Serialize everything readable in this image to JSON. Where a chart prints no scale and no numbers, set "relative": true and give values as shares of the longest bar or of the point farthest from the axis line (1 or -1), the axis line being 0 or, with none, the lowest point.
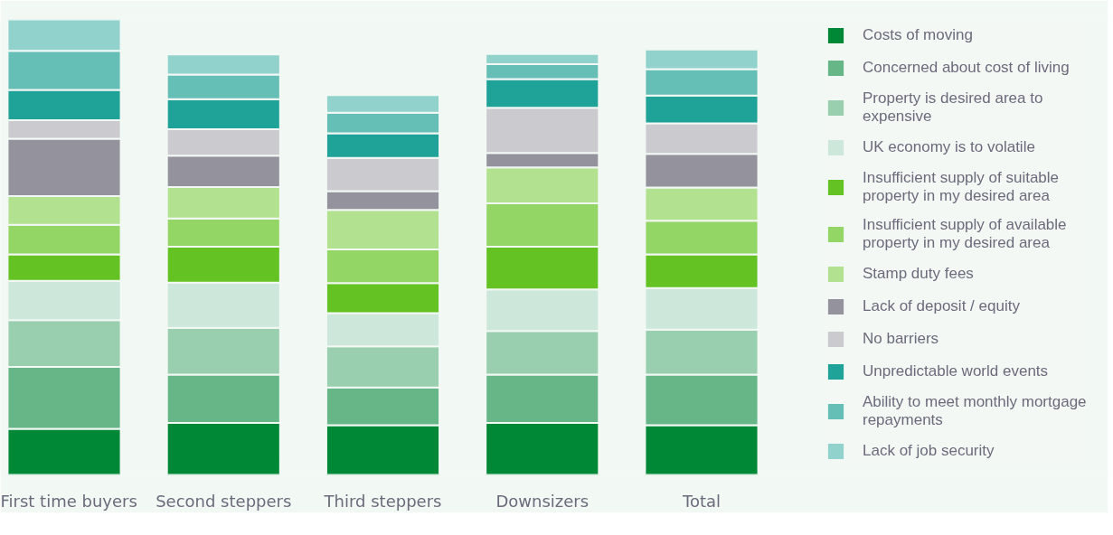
{
  "chart_data": {
    "type": "bar",
    "stacked": true,
    "relative": true,
    "legend": "right",
    "categories": [
      "First time buyers",
      "Second steppers",
      "Third steppers",
      "Downsizers",
      "Total"
    ],
    "series": [
      {
        "name": "Costs of moving",
        "color": "#008837",
        "values": [
          0.101,
          0.114,
          0.109,
          0.114,
          0.109
        ]
      },
      {
        "name": "Concerned about cost of living",
        "color": "#66b688",
        "values": [
          0.136,
          0.106,
          0.083,
          0.106,
          0.111
        ]
      },
      {
        "name": "Property is desired area to expensive",
        "color": "#99cfae",
        "values": [
          0.103,
          0.103,
          0.09,
          0.096,
          0.099
        ]
      },
      {
        "name": "UK economy is to volatile",
        "color": "#cde8da",
        "values": [
          0.086,
          0.099,
          0.073,
          0.091,
          0.091
        ]
      },
      {
        "name": "Insufficient supply of suitable property in my desired area",
        "color": "#64c223",
        "values": [
          0.058,
          0.079,
          0.066,
          0.094,
          0.074
        ]
      },
      {
        "name": "Insufficient supply of available property in my desired area",
        "color": "#93d666",
        "values": [
          0.065,
          0.062,
          0.074,
          0.095,
          0.074
        ]
      },
      {
        "name": "Stamp duty fees",
        "color": "#b2e290",
        "values": [
          0.063,
          0.069,
          0.087,
          0.079,
          0.073
        ]
      },
      {
        "name": "Lack of deposit / equity",
        "color": "#94929c",
        "values": [
          0.126,
          0.069,
          0.041,
          0.032,
          0.074
        ]
      },
      {
        "name": "No barriers",
        "color": "#cbcacf",
        "values": [
          0.041,
          0.058,
          0.073,
          0.099,
          0.067
        ]
      },
      {
        "name": "Unpredictable world events",
        "color": "#1fa398",
        "values": [
          0.066,
          0.066,
          0.054,
          0.063,
          0.061
        ]
      },
      {
        "name": "Ability to meet monthly mortgage repayments",
        "color": "#66bfb7",
        "values": [
          0.086,
          0.054,
          0.045,
          0.033,
          0.058
        ]
      },
      {
        "name": "Lack of job security",
        "color": "#91d3cc",
        "values": [
          0.069,
          0.044,
          0.039,
          0.022,
          0.043
        ]
      }
    ]
  }
}
